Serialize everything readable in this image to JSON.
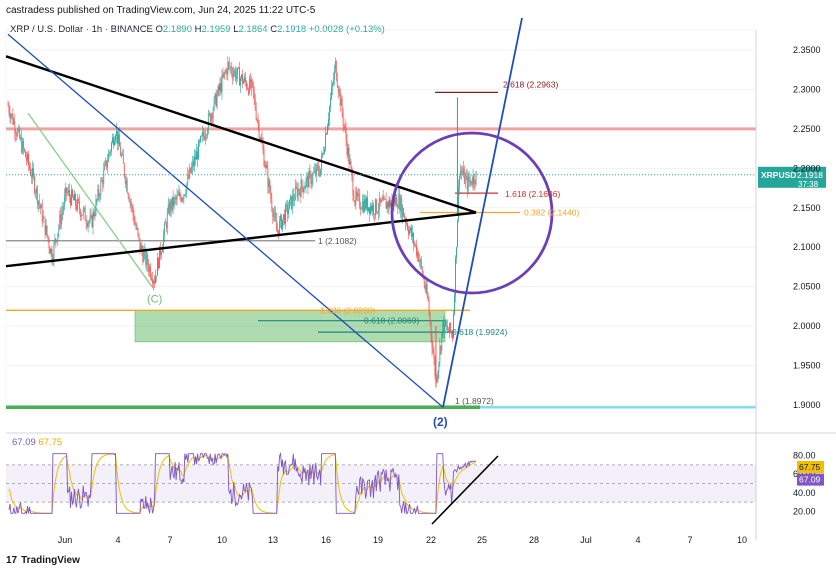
{
  "header": {
    "published": "castradess published on TradingView.com, Jun 24, 2025 11:22 UTC-5"
  },
  "symbol_bar": {
    "name": "XRP / U.S. Dollar · 1h · BINANCE",
    "o_label": "O",
    "o_value": "2.1890",
    "h_label": "H",
    "h_value": "2.1959",
    "l_label": "L",
    "l_value": "2.1864",
    "c_label": "C",
    "c_value": "2.1918",
    "change": "+0.0028 (+0.13%)"
  },
  "rsi_legend": {
    "v1": "67.09",
    "v2": "67.75"
  },
  "price_tag": {
    "symbol": "XRPUSD",
    "price": "2.1918",
    "countdown": "37:38"
  },
  "rsi_tags": {
    "a": "67.75",
    "b": "67.09"
  },
  "brand": {
    "logo": "17",
    "name": "TradingView"
  },
  "colors": {
    "up": "#26a69a",
    "down": "#ef5350",
    "blue_line": "#1e4fb5",
    "fib_orange": "#f5a623",
    "green_zone": "#4caf50",
    "purple": "#6a3fb8",
    "resistance": "#f28b8b",
    "support_cyan": "#80deea"
  },
  "chart_data": {
    "type": "candlestick",
    "ylim": [
      1.9,
      2.37
    ],
    "yticks": [
      "2.3500",
      "2.3000",
      "2.2500",
      "2.2000",
      "2.1500",
      "2.1000",
      "2.0500",
      "2.0000",
      "1.9500",
      "1.9000"
    ],
    "xticks": [
      "Jun",
      "4",
      "7",
      "10",
      "13",
      "16",
      "19",
      "22",
      "25",
      "28",
      "Jul",
      "4",
      "7",
      "10"
    ],
    "path_points": [
      {
        "i": 0,
        "p": 2.28
      },
      {
        "i": 25,
        "p": 2.19
      },
      {
        "i": 45,
        "p": 2.09
      },
      {
        "i": 60,
        "p": 2.17
      },
      {
        "i": 85,
        "p": 2.13
      },
      {
        "i": 110,
        "p": 2.25
      },
      {
        "i": 135,
        "p": 2.1
      },
      {
        "i": 150,
        "p": 2.06
      },
      {
        "i": 165,
        "p": 2.15
      },
      {
        "i": 180,
        "p": 2.17
      },
      {
        "i": 205,
        "p": 2.26
      },
      {
        "i": 225,
        "p": 2.33
      },
      {
        "i": 250,
        "p": 2.3
      },
      {
        "i": 275,
        "p": 2.12
      },
      {
        "i": 295,
        "p": 2.17
      },
      {
        "i": 320,
        "p": 2.2
      },
      {
        "i": 335,
        "p": 2.33
      },
      {
        "i": 355,
        "p": 2.16
      },
      {
        "i": 375,
        "p": 2.15
      },
      {
        "i": 400,
        "p": 2.16
      },
      {
        "i": 420,
        "p": 2.09
      },
      {
        "i": 430,
        "p": 2.03
      },
      {
        "i": 438,
        "p": 1.93
      },
      {
        "i": 445,
        "p": 2.0
      },
      {
        "i": 455,
        "p": 1.99
      },
      {
        "i": 462,
        "p": 2.2
      },
      {
        "i": 470,
        "p": 2.18
      },
      {
        "i": 478,
        "p": 2.19
      }
    ],
    "levels": [
      {
        "label": "2.618 (2.2963)",
        "value": 2.2963
      },
      {
        "label": "1.618 (2.1686)",
        "value": 2.1686
      },
      {
        "label": "0.382 (2.1440)",
        "value": 2.144
      },
      {
        "label": "1 (2.1082)",
        "value": 2.1082
      },
      {
        "label": "1.236 (2.0200)",
        "value": 2.02
      },
      {
        "label": "0.618 (2.0069)",
        "value": 2.0069
      },
      {
        "label": "0.618 (1.9924)",
        "value": 1.9924
      },
      {
        "label": "1 (1.8972)",
        "value": 1.8972
      }
    ],
    "resistance": 2.25,
    "current_price": 2.1918,
    "wave_labels": [
      "(C)",
      "(2)"
    ],
    "rsi": {
      "ylim": [
        0,
        100
      ],
      "yticks": [
        "80.00",
        "60.00",
        "40.00",
        "20.00"
      ],
      "upper": 70,
      "mid": 50,
      "lower": 30,
      "last": 67.09,
      "ma_last": 67.75
    }
  }
}
